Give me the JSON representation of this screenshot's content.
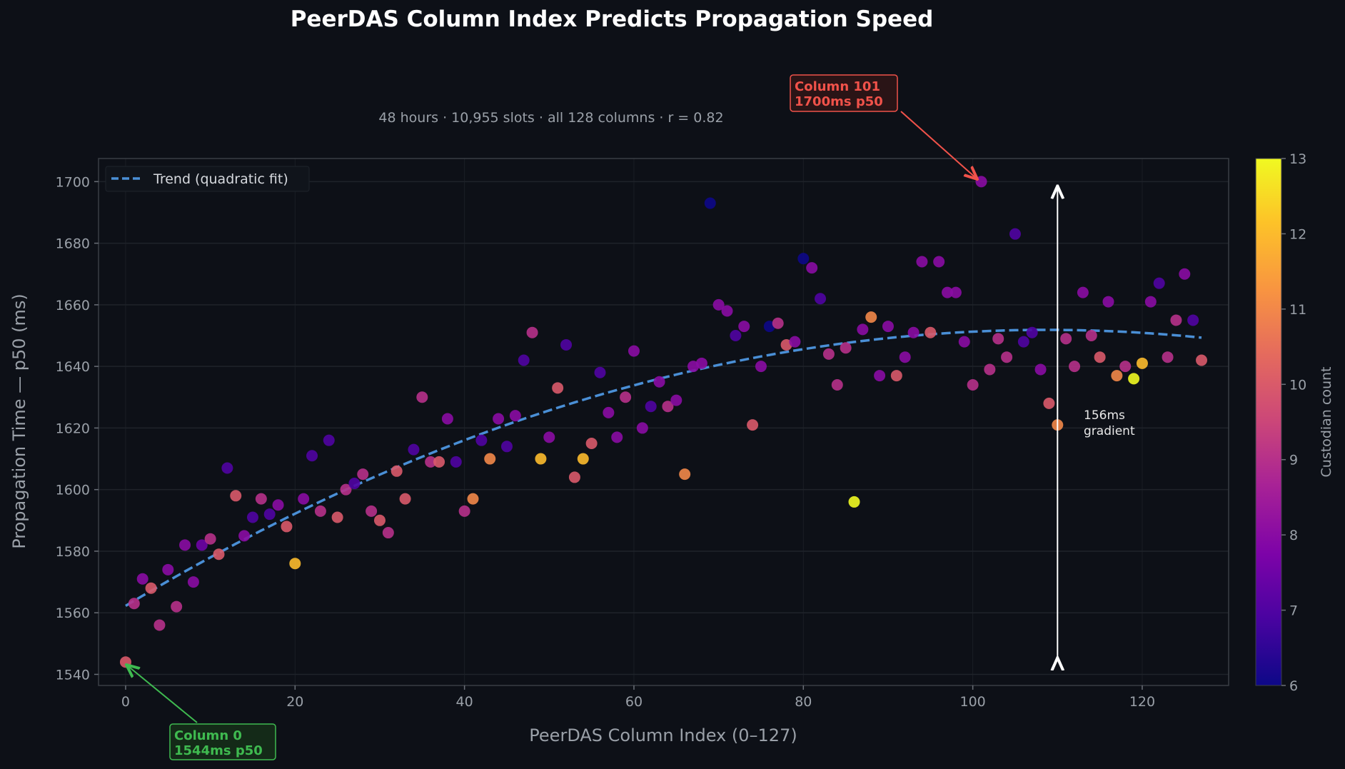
{
  "chart_data": {
    "type": "scatter",
    "title": "PeerDAS Column Index Predicts Propagation Speed",
    "subtitle": "48 hours · 10,955 slots · all 128 columns · r = 0.82",
    "xlabel": "PeerDAS Column Index (0–127)",
    "ylabel": "Propagation Time — p50 (ms)",
    "xlim": [
      -3.2,
      130.2
    ],
    "ylim": [
      1536.4,
      1707.5
    ],
    "xticks": [
      0,
      20,
      40,
      60,
      80,
      100,
      120
    ],
    "yticks": [
      1540,
      1560,
      1580,
      1600,
      1620,
      1640,
      1660,
      1680,
      1700
    ],
    "grid": true,
    "legend_position": "top-left",
    "trend": {
      "name": "Trend (quadratic fit)",
      "color": "#4a8fd6",
      "style": "dashed"
    },
    "colorbar": {
      "label": "Custodian count",
      "min": 6,
      "max": 13,
      "ticks": [
        6,
        7,
        8,
        9,
        10,
        11,
        12,
        13
      ],
      "colormap": "plasma"
    },
    "x": [
      0,
      1,
      2,
      3,
      4,
      5,
      6,
      7,
      8,
      9,
      10,
      11,
      12,
      13,
      14,
      15,
      16,
      17,
      18,
      19,
      20,
      21,
      22,
      23,
      24,
      25,
      26,
      27,
      28,
      29,
      30,
      31,
      32,
      33,
      34,
      35,
      36,
      37,
      38,
      39,
      40,
      41,
      42,
      43,
      44,
      45,
      46,
      47,
      48,
      49,
      50,
      51,
      52,
      53,
      54,
      55,
      56,
      57,
      58,
      59,
      60,
      61,
      62,
      63,
      64,
      65,
      66,
      67,
      68,
      69,
      70,
      71,
      72,
      73,
      74,
      75,
      76,
      77,
      78,
      79,
      80,
      81,
      82,
      83,
      84,
      85,
      86,
      87,
      88,
      89,
      90,
      91,
      92,
      93,
      94,
      95,
      96,
      97,
      98,
      99,
      100,
      101,
      102,
      103,
      104,
      105,
      106,
      107,
      108,
      109,
      110,
      111,
      112,
      113,
      114,
      115,
      116,
      117,
      118,
      119,
      120,
      121,
      122,
      123,
      124,
      125,
      126,
      127
    ],
    "y": [
      1544,
      1563,
      1571,
      1568,
      1556,
      1574,
      1562,
      1582,
      1570,
      1582,
      1584,
      1579,
      1607,
      1598,
      1585,
      1591,
      1597,
      1592,
      1595,
      1588,
      1576,
      1597,
      1611,
      1593,
      1616,
      1591,
      1600,
      1602,
      1605,
      1593,
      1590,
      1586,
      1606,
      1597,
      1613,
      1630,
      1609,
      1609,
      1623,
      1609,
      1593,
      1597,
      1616,
      1610,
      1623,
      1614,
      1624,
      1642,
      1651,
      1610,
      1617,
      1633,
      1647,
      1604,
      1610,
      1615,
      1638,
      1625,
      1617,
      1630,
      1645,
      1620,
      1627,
      1635,
      1627,
      1629,
      1605,
      1640,
      1641,
      1693,
      1660,
      1658,
      1650,
      1653,
      1621,
      1640,
      1653,
      1654,
      1647,
      1648,
      1675,
      1672,
      1662,
      1644,
      1634,
      1646,
      1596,
      1652,
      1656,
      1637,
      1653,
      1637,
      1643,
      1651,
      1674,
      1651,
      1674,
      1664,
      1664,
      1648,
      1634,
      1700,
      1639,
      1649,
      1643,
      1683,
      1648,
      1651,
      1639,
      1628,
      1621,
      1649,
      1640,
      1664,
      1650,
      1643,
      1661,
      1637,
      1640,
      1636,
      1641,
      1661,
      1667,
      1643,
      1655,
      1670,
      1655,
      1642
    ],
    "custodians": [
      10,
      9,
      8,
      10,
      9,
      8,
      9,
      8,
      8,
      7.5,
      9,
      10,
      7,
      10,
      8,
      7,
      9,
      7,
      8,
      10,
      12,
      8,
      7,
      9,
      7,
      10,
      9,
      7,
      9,
      9,
      10,
      9,
      10,
      10,
      7,
      9,
      9,
      10,
      8,
      7,
      9,
      11,
      7,
      11,
      8,
      7,
      8,
      7,
      9,
      12,
      8,
      10,
      7,
      10,
      12,
      10,
      7,
      8,
      8,
      9,
      8,
      8,
      7,
      8,
      9,
      8,
      11,
      8,
      8,
      6,
      8,
      8,
      7,
      8,
      10,
      8,
      6,
      9,
      10,
      8,
      6,
      8,
      7,
      9,
      9,
      9,
      13,
      8,
      11,
      8,
      8,
      10,
      8,
      8,
      8,
      10,
      8,
      8,
      8,
      8,
      9,
      8,
      9,
      9,
      9,
      7,
      7,
      7,
      8,
      10,
      11,
      9,
      9,
      8,
      9,
      10,
      8,
      11,
      9,
      13,
      12,
      8,
      7,
      9,
      9,
      8,
      7,
      10
    ],
    "annotations": [
      {
        "line1": "Column 101",
        "line2": "1700ms p50",
        "x": 101,
        "y": 1700,
        "color": "#f0524a"
      },
      {
        "line1": "Column 0",
        "line2": "1544ms p50",
        "x": 0,
        "y": 1544,
        "color": "#3fba50"
      }
    ],
    "gradient": {
      "line1": "156ms",
      "line2": "gradient",
      "x": 110,
      "y_from": 1544,
      "y_to": 1700
    }
  }
}
